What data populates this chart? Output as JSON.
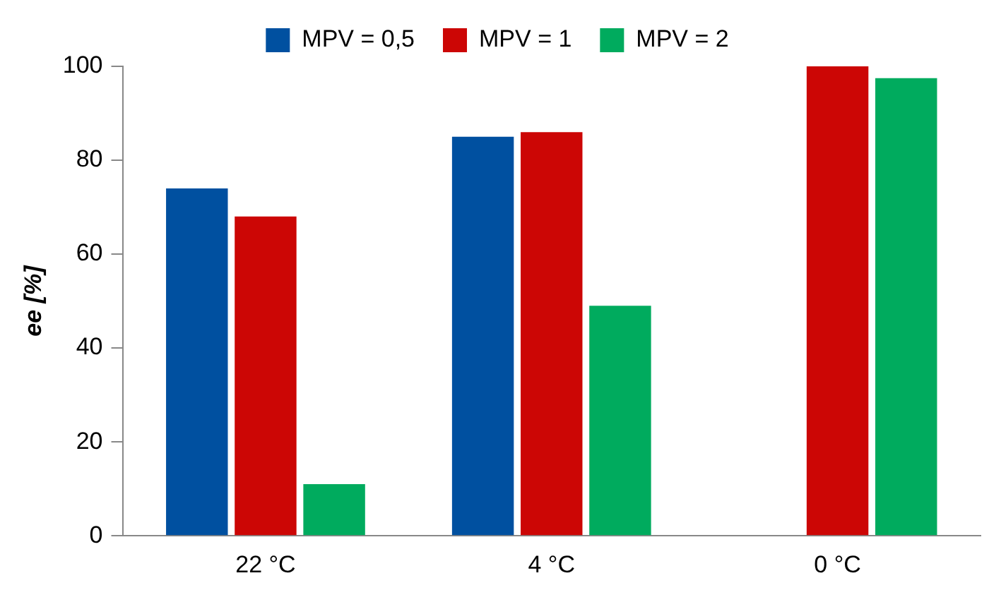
{
  "chart_data": {
    "type": "bar",
    "ylabel": "ee [%]",
    "categories": [
      "22 °C",
      "4 °C",
      "0 °C"
    ],
    "series": [
      {
        "name": "MPV = 0,5",
        "color": "#0050a0",
        "values": [
          74,
          85,
          null
        ]
      },
      {
        "name": "MPV = 1",
        "color": "#cc0605",
        "values": [
          68,
          86,
          100
        ]
      },
      {
        "name": "MPV = 2",
        "color": "#00ab5e",
        "values": [
          11,
          49,
          97.5
        ]
      }
    ],
    "ylim": [
      0,
      100
    ],
    "yticks": [
      0,
      20,
      40,
      60,
      80,
      100
    ],
    "grid": false,
    "legend": "top"
  }
}
